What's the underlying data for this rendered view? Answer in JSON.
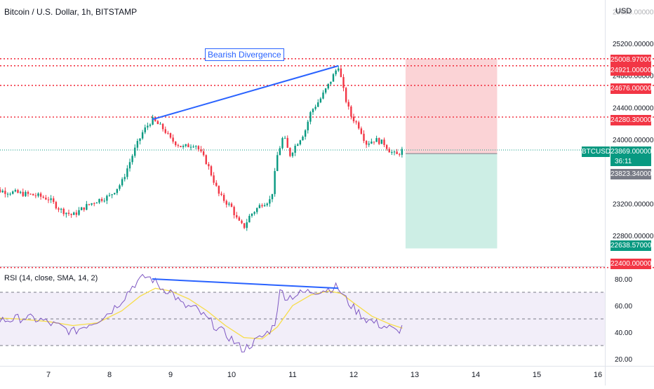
{
  "header": {
    "title": "Bitcoin / U.S. Dollar, 1h, BITSTAMP"
  },
  "price_axis": {
    "currency": "USD",
    "ticks": [
      "25600.00000",
      "25200.00000",
      "24800.00000",
      "24400.00000",
      "24000.00000",
      "23200.00000",
      "22800.00000"
    ]
  },
  "price_tags": [
    {
      "value": "25008.97000",
      "color": "red"
    },
    {
      "value": "24921.00000",
      "color": "red"
    },
    {
      "value": "24676.00000",
      "color": "red"
    },
    {
      "value": "24280.30000",
      "color": "red"
    },
    {
      "value": "23869.00000",
      "color": "green"
    },
    {
      "value": "23823.34000",
      "color": "gray"
    },
    {
      "value": "22638.57000",
      "color": "green"
    },
    {
      "value": "22400.00000",
      "color": "red"
    }
  ],
  "symbol_tag": "BTCUSD",
  "countdown": "36:11",
  "annotation": "Bearish Divergence",
  "rsi": {
    "label": "RSI (14, close, SMA, 14, 2)",
    "ticks": [
      "80.00",
      "60.00",
      "40.00",
      "20.00"
    ],
    "levels": [
      70,
      50,
      30
    ]
  },
  "time_axis": {
    "labels": [
      "7",
      "8",
      "9",
      "10",
      "11",
      "12",
      "13",
      "14",
      "15",
      "16"
    ]
  },
  "colors": {
    "up": "#089981",
    "down": "#f23645",
    "trendline": "#2962ff",
    "rsi_line": "#7e57c2",
    "rsi_ma": "#f7dd4a",
    "stop_zone": "#fbd3d6",
    "target_zone": "#cdeee5",
    "level_dots": "#f23645"
  },
  "chart_data": {
    "type": "candlestick",
    "title": "Bitcoin / U.S. Dollar, 1h, BITSTAMP",
    "ylim": [
      22300,
      25800
    ],
    "series": [
      {
        "name": "BTCUSD",
        "close_path": [
          [
            6.0,
            23380
          ],
          [
            6.5,
            23330
          ],
          [
            6.8,
            23300
          ],
          [
            7.0,
            23260
          ],
          [
            7.2,
            23120
          ],
          [
            7.4,
            23050
          ],
          [
            7.6,
            23160
          ],
          [
            7.8,
            23240
          ],
          [
            8.0,
            23290
          ],
          [
            8.2,
            23460
          ],
          [
            8.4,
            23850
          ],
          [
            8.55,
            24100
          ],
          [
            8.7,
            24250
          ],
          [
            8.9,
            24120
          ],
          [
            9.0,
            24000
          ],
          [
            9.2,
            23900
          ],
          [
            9.4,
            23950
          ],
          [
            9.6,
            23700
          ],
          [
            9.8,
            23300
          ],
          [
            10.0,
            23150
          ],
          [
            10.1,
            22980
          ],
          [
            10.2,
            22900
          ],
          [
            10.3,
            23050
          ],
          [
            10.5,
            23200
          ],
          [
            10.65,
            23250
          ],
          [
            10.75,
            23800
          ],
          [
            10.85,
            24050
          ],
          [
            10.95,
            23800
          ],
          [
            11.05,
            23930
          ],
          [
            11.2,
            24100
          ],
          [
            11.3,
            24350
          ],
          [
            11.45,
            24500
          ],
          [
            11.6,
            24700
          ],
          [
            11.7,
            24850
          ],
          [
            11.75,
            24921
          ],
          [
            11.85,
            24550
          ],
          [
            11.95,
            24300
          ],
          [
            12.1,
            24150
          ],
          [
            12.2,
            23950
          ],
          [
            12.35,
            24000
          ],
          [
            12.5,
            23950
          ],
          [
            12.6,
            23850
          ],
          [
            12.7,
            23800
          ],
          [
            12.8,
            23869
          ]
        ]
      }
    ],
    "horizontal_levels": [
      25008.97,
      24921.0,
      24676.0,
      24280.3,
      23869.0,
      22400.0
    ],
    "position": {
      "entry": 23823.34,
      "stop": 25008.97,
      "target": 22638.57
    },
    "divergence_price_line": [
      [
        8.7,
        24250
      ],
      [
        11.75,
        24921
      ]
    ],
    "rsi": {
      "points": [
        [
          6.0,
          50
        ],
        [
          6.3,
          49
        ],
        [
          6.6,
          51
        ],
        [
          6.9,
          49
        ],
        [
          7.0,
          47
        ],
        [
          7.2,
          44
        ],
        [
          7.4,
          40
        ],
        [
          7.6,
          45
        ],
        [
          7.8,
          49
        ],
        [
          8.0,
          55
        ],
        [
          8.2,
          64
        ],
        [
          8.4,
          76
        ],
        [
          8.6,
          82
        ],
        [
          8.7,
          80
        ],
        [
          8.85,
          73
        ],
        [
          9.0,
          71
        ],
        [
          9.2,
          60
        ],
        [
          9.4,
          58
        ],
        [
          9.6,
          50
        ],
        [
          9.8,
          42
        ],
        [
          10.0,
          35
        ],
        [
          10.1,
          30
        ],
        [
          10.2,
          27
        ],
        [
          10.35,
          32
        ],
        [
          10.55,
          38
        ],
        [
          10.7,
          45
        ],
        [
          10.8,
          72
        ],
        [
          10.9,
          66
        ],
        [
          11.05,
          68
        ],
        [
          11.2,
          70
        ],
        [
          11.35,
          71
        ],
        [
          11.55,
          72
        ],
        [
          11.7,
          74
        ],
        [
          11.75,
          73
        ],
        [
          11.85,
          66
        ],
        [
          12.0,
          58
        ],
        [
          12.2,
          50
        ],
        [
          12.4,
          46
        ],
        [
          12.6,
          43
        ],
        [
          12.7,
          40
        ],
        [
          12.8,
          44
        ]
      ],
      "ma_points": [
        [
          6.0,
          51
        ],
        [
          6.5,
          50
        ],
        [
          7.0,
          48
        ],
        [
          7.4,
          45
        ],
        [
          7.8,
          47
        ],
        [
          8.2,
          56
        ],
        [
          8.5,
          67
        ],
        [
          8.75,
          73
        ],
        [
          9.0,
          71
        ],
        [
          9.3,
          65
        ],
        [
          9.6,
          56
        ],
        [
          9.9,
          45
        ],
        [
          10.2,
          36
        ],
        [
          10.5,
          35
        ],
        [
          10.75,
          44
        ],
        [
          11.0,
          60
        ],
        [
          11.3,
          68
        ],
        [
          11.6,
          71
        ],
        [
          11.8,
          69
        ],
        [
          12.0,
          62
        ],
        [
          12.3,
          52
        ],
        [
          12.6,
          46
        ],
        [
          12.8,
          43
        ]
      ],
      "divergence_line": [
        [
          8.7,
          80
        ],
        [
          11.75,
          73
        ]
      ]
    }
  }
}
